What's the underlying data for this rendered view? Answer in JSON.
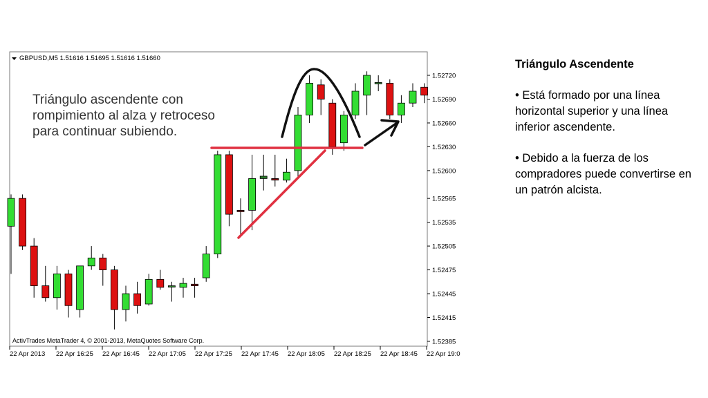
{
  "chart_data": {
    "type": "candlestick",
    "symbol_header": "GBPUSD,M5  1.51616 1.51695 1.51616 1.51660",
    "annotation": "Triángulo ascendente con rompimiento al alza y retroceso para continuar subiendo.",
    "annotation_lines": [
      "Triángulo ascendente con",
      "rompimiento al alza y retroceso",
      "para continuar subiendo."
    ],
    "footer": "ActivTrades MetaTrader 4, © 2001-2013, MetaQuotes Software Corp.",
    "y_ticks": [
      "1.52720",
      "1.52690",
      "1.52660",
      "1.52630",
      "1.52600",
      "1.52565",
      "1.52535",
      "1.52505",
      "1.52475",
      "1.52445",
      "1.52415",
      "1.52385"
    ],
    "ylim": [
      1.5238,
      1.5274
    ],
    "x_ticks": [
      "22 Apr 2013",
      "22 Apr 16:25",
      "22 Apr 16:45",
      "22 Apr 17:05",
      "22 Apr 17:25",
      "22 Apr 17:45",
      "22 Apr 18:05",
      "22 Apr 18:25",
      "22 Apr 18:45",
      "22 Apr 19:0"
    ],
    "bull_color": "#33dd33",
    "bear_color": "#dd1111",
    "candles": [
      {
        "o": 1.5253,
        "h": 1.5257,
        "l": 1.5247,
        "c": 1.52565
      },
      {
        "o": 1.52565,
        "h": 1.5257,
        "l": 1.525,
        "c": 1.52505
      },
      {
        "o": 1.52505,
        "h": 1.52515,
        "l": 1.5244,
        "c": 1.52455
      },
      {
        "o": 1.52455,
        "h": 1.5248,
        "l": 1.52435,
        "c": 1.5244
      },
      {
        "o": 1.5244,
        "h": 1.5248,
        "l": 1.52425,
        "c": 1.5247
      },
      {
        "o": 1.5247,
        "h": 1.52475,
        "l": 1.52415,
        "c": 1.5243
      },
      {
        "o": 1.52425,
        "h": 1.5248,
        "l": 1.52415,
        "c": 1.5248
      },
      {
        "o": 1.5248,
        "h": 1.52505,
        "l": 1.52475,
        "c": 1.5249
      },
      {
        "o": 1.5249,
        "h": 1.52495,
        "l": 1.52455,
        "c": 1.52475
      },
      {
        "o": 1.52475,
        "h": 1.5248,
        "l": 1.524,
        "c": 1.52425
      },
      {
        "o": 1.52425,
        "h": 1.52455,
        "l": 1.5241,
        "c": 1.52445
      },
      {
        "o": 1.52445,
        "h": 1.5246,
        "l": 1.5242,
        "c": 1.5243
      },
      {
        "o": 1.52432,
        "h": 1.5247,
        "l": 1.5243,
        "c": 1.52463
      },
      {
        "o": 1.52463,
        "h": 1.52475,
        "l": 1.5245,
        "c": 1.52453
      },
      {
        "o": 1.52455,
        "h": 1.5246,
        "l": 1.52435,
        "c": 1.52455
      },
      {
        "o": 1.52453,
        "h": 1.52465,
        "l": 1.5244,
        "c": 1.52458
      },
      {
        "o": 1.52457,
        "h": 1.52465,
        "l": 1.5244,
        "c": 1.52455
      },
      {
        "o": 1.52465,
        "h": 1.52505,
        "l": 1.5246,
        "c": 1.52495
      },
      {
        "o": 1.52495,
        "h": 1.52625,
        "l": 1.5249,
        "c": 1.5262
      },
      {
        "o": 1.5262,
        "h": 1.52625,
        "l": 1.5253,
        "c": 1.52545
      },
      {
        "o": 1.5255,
        "h": 1.52565,
        "l": 1.5252,
        "c": 1.52549
      },
      {
        "o": 1.5255,
        "h": 1.5262,
        "l": 1.52525,
        "c": 1.5259
      },
      {
        "o": 1.5259,
        "h": 1.5262,
        "l": 1.52575,
        "c": 1.52593
      },
      {
        "o": 1.5259,
        "h": 1.5262,
        "l": 1.5258,
        "c": 1.52588
      },
      {
        "o": 1.52588,
        "h": 1.52615,
        "l": 1.52585,
        "c": 1.52598
      },
      {
        "o": 1.526,
        "h": 1.5268,
        "l": 1.5259,
        "c": 1.5267
      },
      {
        "o": 1.5267,
        "h": 1.5272,
        "l": 1.5266,
        "c": 1.5271
      },
      {
        "o": 1.52708,
        "h": 1.52715,
        "l": 1.5267,
        "c": 1.5269
      },
      {
        "o": 1.52685,
        "h": 1.5269,
        "l": 1.5262,
        "c": 1.5263
      },
      {
        "o": 1.52635,
        "h": 1.52675,
        "l": 1.52625,
        "c": 1.5267
      },
      {
        "o": 1.5267,
        "h": 1.5271,
        "l": 1.52665,
        "c": 1.527
      },
      {
        "o": 1.52695,
        "h": 1.52725,
        "l": 1.5267,
        "c": 1.5272
      },
      {
        "o": 1.52711,
        "h": 1.5272,
        "l": 1.527,
        "c": 1.52711
      },
      {
        "o": 1.5271,
        "h": 1.52715,
        "l": 1.52665,
        "c": 1.5267
      },
      {
        "o": 1.5267,
        "h": 1.52695,
        "l": 1.5266,
        "c": 1.52685
      },
      {
        "o": 1.52685,
        "h": 1.5271,
        "l": 1.5268,
        "c": 1.527
      },
      {
        "o": 1.52705,
        "h": 1.5271,
        "l": 1.52685,
        "c": 1.52695
      }
    ]
  },
  "side_panel": {
    "title": "Triángulo Ascendente",
    "bullet1": "• Está formado por una línea horizontal superior y una línea inferior ascendente.",
    "bullet2": "• Debido a la fuerza de los compradores puede convertirse en un patrón alcista."
  }
}
